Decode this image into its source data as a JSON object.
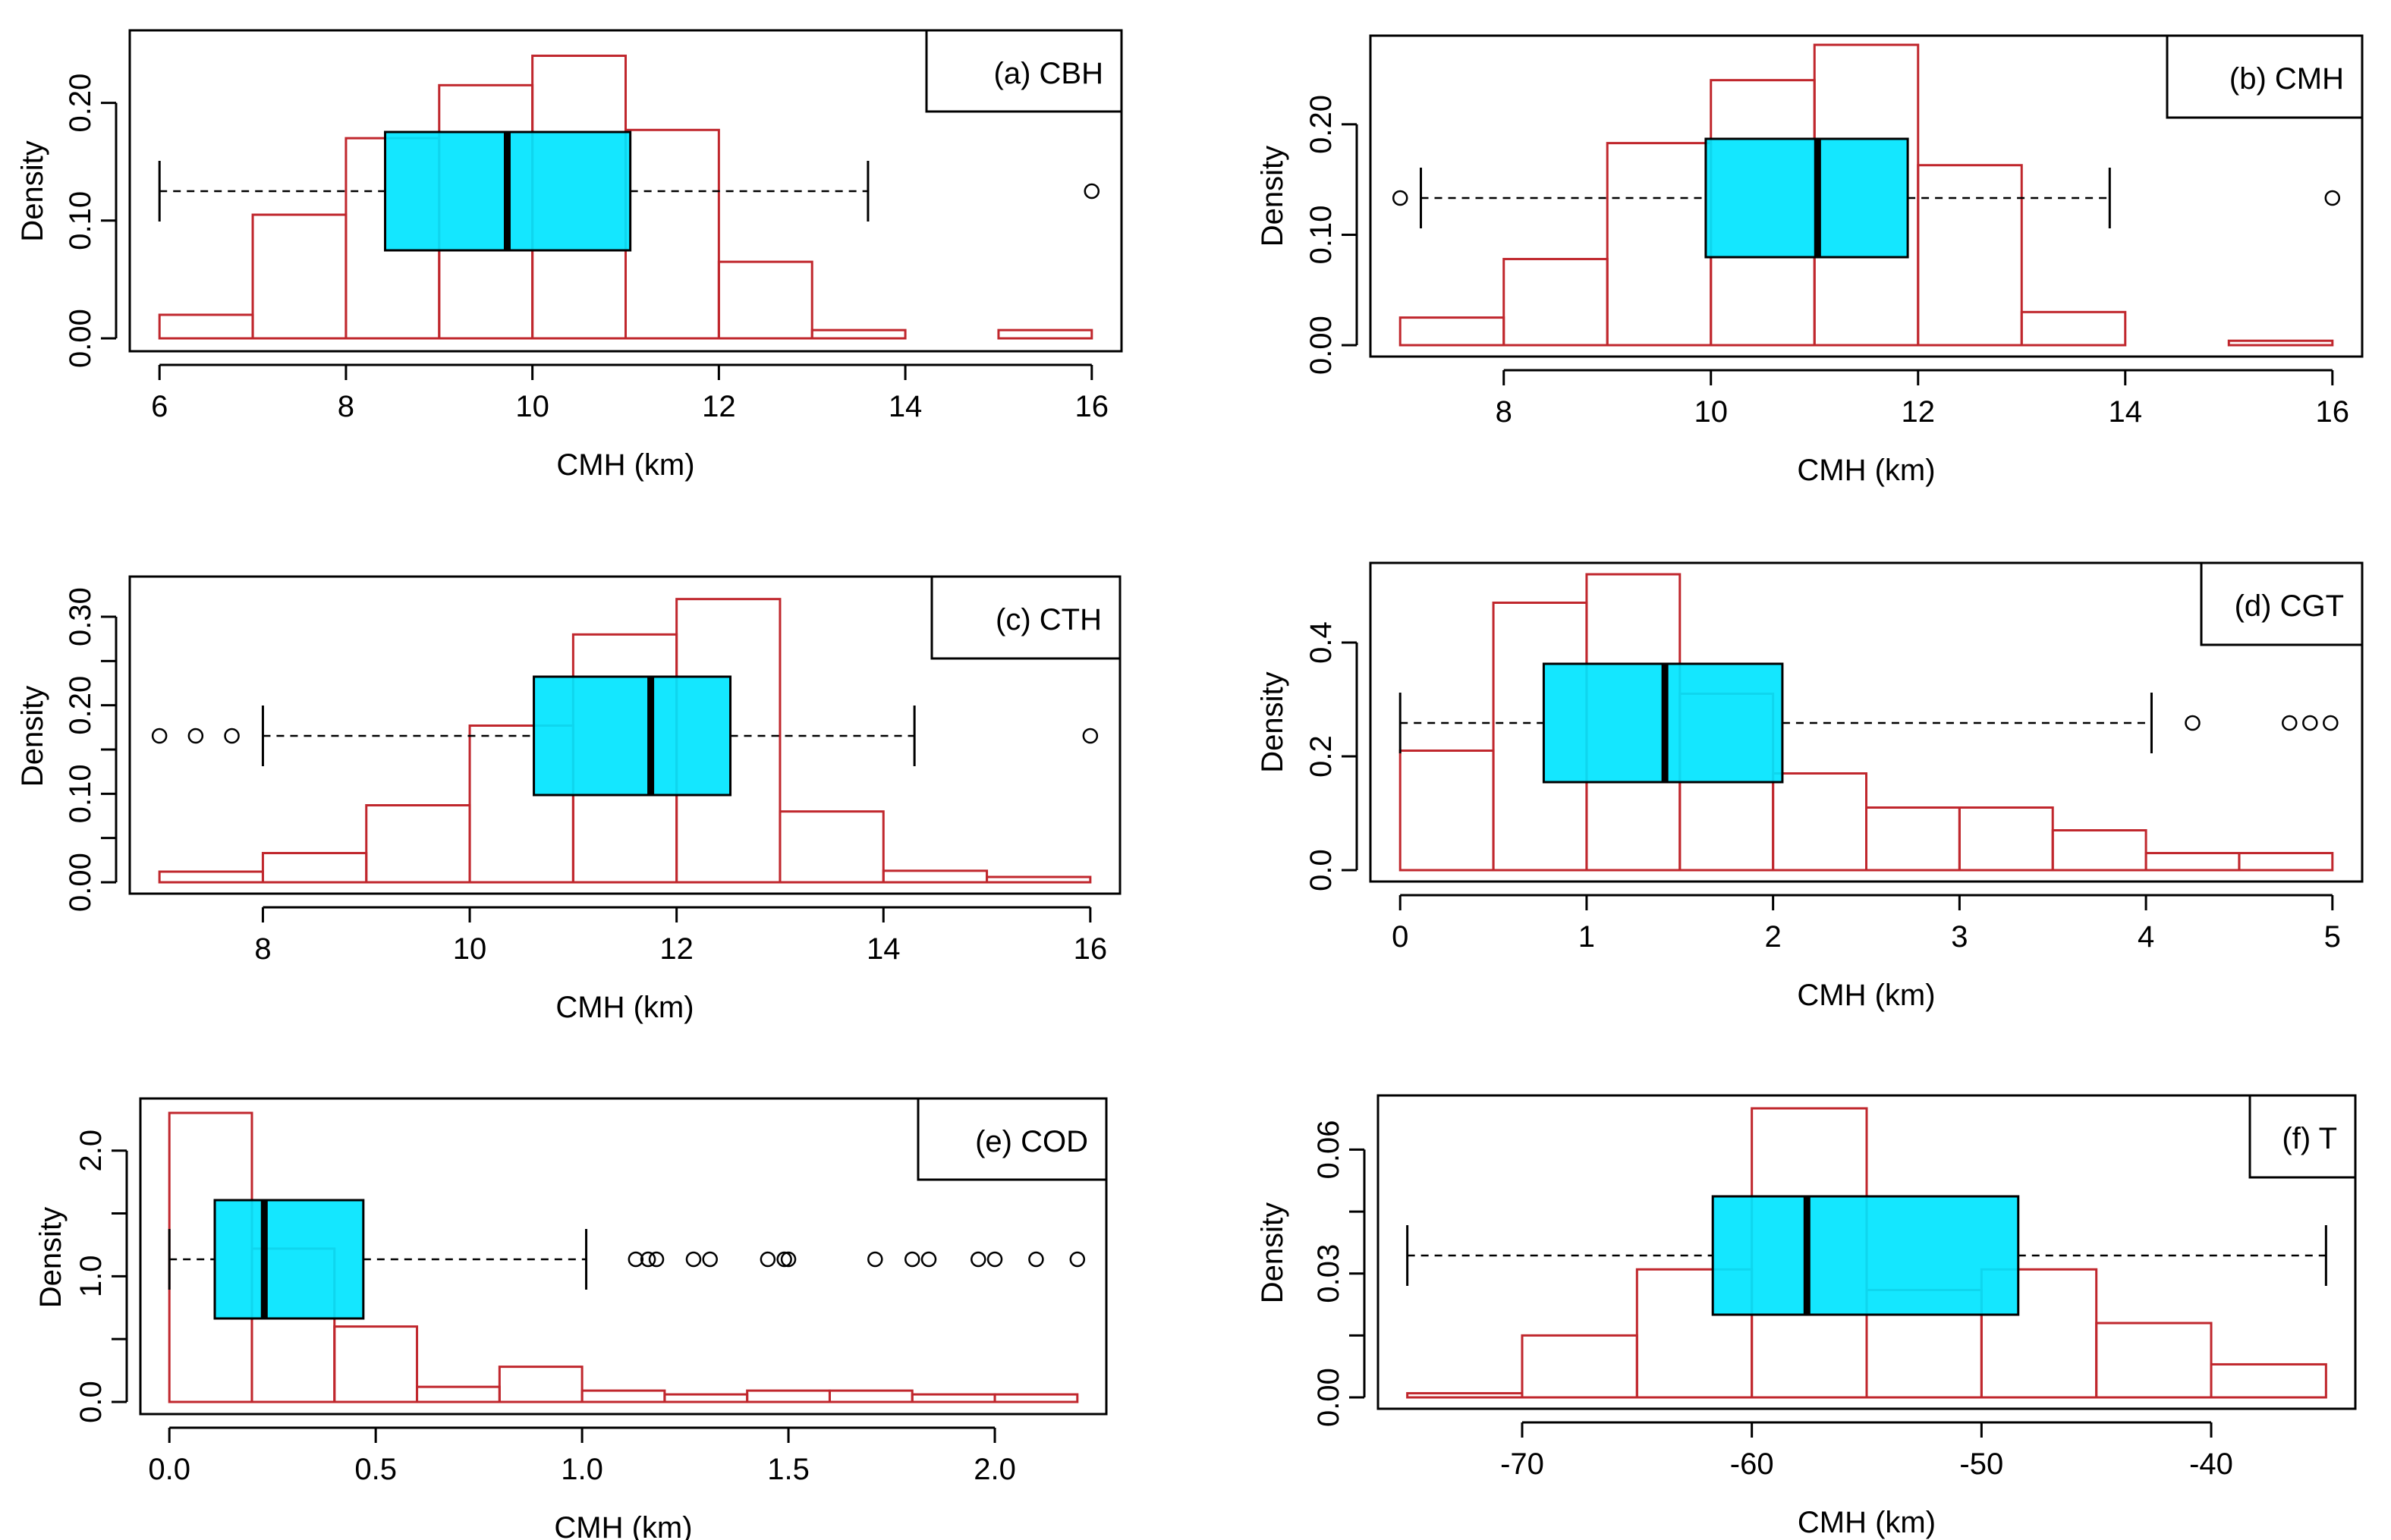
{
  "colors": {
    "histogram": "#C0272D",
    "box_fill": "#00E5FF",
    "ink": "#000000",
    "background": "#FFFFFF"
  },
  "chart_data": [
    {
      "type": "histogram+boxplot",
      "title": "(a) CBH",
      "xlabel": "CMH (km)",
      "ylabel": "Density",
      "xlim": [
        6,
        16
      ],
      "ylim": [
        0,
        0.25
      ],
      "xticks": [
        6,
        8,
        10,
        12,
        14,
        16
      ],
      "xtick_labels": [
        "6",
        "8",
        "10",
        "12",
        "14",
        "16"
      ],
      "yticks": [
        0,
        0.1,
        0.2
      ],
      "ytick_labels": [
        "0.00",
        "0.10",
        "0.20"
      ],
      "histogram": {
        "bins": [
          [
            6,
            7
          ],
          [
            7,
            8
          ],
          [
            8,
            9
          ],
          [
            9,
            10
          ],
          [
            10,
            11
          ],
          [
            11,
            12
          ],
          [
            12,
            13
          ],
          [
            13,
            14
          ],
          [
            14,
            15
          ],
          [
            15,
            16
          ]
        ],
        "density": [
          0.02,
          0.105,
          0.17,
          0.215,
          0.24,
          0.177,
          0.065,
          0.007,
          0.0,
          0.007
        ]
      },
      "boxplot": {
        "whisker_low": 6.0,
        "q1": 8.42,
        "median": 9.73,
        "q3": 11.05,
        "whisker_high": 13.6,
        "outliers": [
          16.0
        ]
      }
    },
    {
      "type": "histogram+boxplot",
      "title": "(b) CMH",
      "xlabel": "CMH (km)",
      "ylabel": "Density",
      "xlim": [
        7,
        16
      ],
      "ylim": [
        0,
        0.27
      ],
      "xticks": [
        8,
        10,
        12,
        14,
        16
      ],
      "xtick_labels": [
        "8",
        "10",
        "12",
        "14",
        "16"
      ],
      "yticks": [
        0,
        0.1,
        0.2
      ],
      "ytick_labels": [
        "0.00",
        "0.10",
        "0.20"
      ],
      "histogram": {
        "bins": [
          [
            7,
            8
          ],
          [
            8,
            9
          ],
          [
            9,
            10
          ],
          [
            10,
            11
          ],
          [
            11,
            12
          ],
          [
            12,
            13
          ],
          [
            13,
            14
          ],
          [
            14,
            15
          ],
          [
            15,
            16
          ]
        ],
        "density": [
          0.025,
          0.078,
          0.183,
          0.24,
          0.272,
          0.163,
          0.03,
          0.0,
          0.004
        ]
      },
      "boxplot": {
        "whisker_low": 7.2,
        "q1": 9.95,
        "median": 11.03,
        "q3": 11.9,
        "whisker_high": 13.85,
        "outliers": [
          7.0,
          16.0
        ]
      }
    },
    {
      "type": "histogram+boxplot",
      "title": "(c) CTH",
      "xlabel": "CMH (km)",
      "ylabel": "Density",
      "xlim": [
        7,
        16
      ],
      "ylim": [
        0,
        0.33
      ],
      "xticks": [
        8,
        10,
        12,
        14,
        16
      ],
      "xtick_labels": [
        "8",
        "10",
        "12",
        "14",
        "16"
      ],
      "yticks": [
        0,
        0.05,
        0.1,
        0.15,
        0.2,
        0.25,
        0.3
      ],
      "ytick_labels": [
        "0.00",
        "0.10",
        "0.20",
        "0.30"
      ],
      "histogram": {
        "bins": [
          [
            7,
            8
          ],
          [
            8,
            9
          ],
          [
            9,
            10
          ],
          [
            10,
            11
          ],
          [
            11,
            12
          ],
          [
            12,
            13
          ],
          [
            13,
            14
          ],
          [
            14,
            15
          ],
          [
            15,
            16
          ]
        ],
        "density": [
          0.012,
          0.033,
          0.087,
          0.177,
          0.28,
          0.32,
          0.08,
          0.013,
          0.006
        ]
      },
      "boxplot": {
        "whisker_low": 8.0,
        "q1": 10.62,
        "median": 11.75,
        "q3": 12.52,
        "whisker_high": 14.3,
        "outliers": [
          7.0,
          7.35,
          7.7,
          16.0
        ]
      }
    },
    {
      "type": "histogram+boxplot",
      "title": "(d) CGT",
      "xlabel": "CMH (km)",
      "ylabel": "Density",
      "xlim": [
        0,
        5
      ],
      "ylim": [
        0,
        0.52
      ],
      "xticks": [
        0,
        1,
        2,
        3,
        4,
        5
      ],
      "xtick_labels": [
        "0",
        "1",
        "2",
        "3",
        "4",
        "5"
      ],
      "yticks": [
        0,
        0.2,
        0.4
      ],
      "ytick_labels": [
        "0.0",
        "0.2",
        "0.4"
      ],
      "histogram": {
        "bins": [
          [
            0,
            0.5
          ],
          [
            0.5,
            1
          ],
          [
            1,
            1.5
          ],
          [
            1.5,
            2
          ],
          [
            2,
            2.5
          ],
          [
            2.5,
            3
          ],
          [
            3,
            3.5
          ],
          [
            3.5,
            4
          ],
          [
            4,
            4.5
          ],
          [
            4.5,
            5
          ]
        ],
        "density": [
          0.21,
          0.47,
          0.52,
          0.31,
          0.17,
          0.11,
          0.11,
          0.07,
          0.03,
          0.03
        ]
      },
      "boxplot": {
        "whisker_low": 0.0,
        "q1": 0.77,
        "median": 1.42,
        "q3": 2.05,
        "whisker_high": 4.03,
        "outliers": [
          4.25,
          4.77,
          4.88,
          4.99
        ]
      }
    },
    {
      "type": "histogram+boxplot",
      "title": "(e) COD",
      "xlabel": "CMH (km)",
      "ylabel": "Density",
      "xlim": [
        0,
        2.2
      ],
      "ylim": [
        0,
        2.3
      ],
      "xticks": [
        0,
        0.5,
        1,
        1.5,
        2
      ],
      "xtick_labels": [
        "0.0",
        "0.5",
        "1.0",
        "1.5",
        "2.0"
      ],
      "yticks": [
        0,
        0.5,
        1,
        1.5,
        2
      ],
      "ytick_labels": [
        "0.0",
        "1.0",
        "2.0"
      ],
      "histogram": {
        "bins": [
          [
            0,
            0.2
          ],
          [
            0.2,
            0.4
          ],
          [
            0.4,
            0.6
          ],
          [
            0.6,
            0.8
          ],
          [
            0.8,
            1.0
          ],
          [
            1.0,
            1.2
          ],
          [
            1.2,
            1.4
          ],
          [
            1.4,
            1.6
          ],
          [
            1.6,
            1.8
          ],
          [
            1.8,
            2.0
          ],
          [
            2.0,
            2.2
          ]
        ],
        "density": [
          2.3,
          1.22,
          0.6,
          0.12,
          0.28,
          0.09,
          0.06,
          0.09,
          0.09,
          0.06,
          0.06
        ]
      },
      "boxplot": {
        "whisker_low": 0.0,
        "q1": 0.11,
        "median": 0.23,
        "q3": 0.47,
        "whisker_high": 1.01,
        "outliers": [
          1.13,
          1.16,
          1.18,
          1.27,
          1.31,
          1.45,
          1.49,
          1.5,
          1.71,
          1.8,
          1.84,
          1.96,
          2.0,
          2.1,
          2.2
        ]
      }
    },
    {
      "type": "histogram+boxplot",
      "title": "(f) T",
      "xlabel": "CMH (km)",
      "ylabel": "Density",
      "xlim": [
        -75,
        -35
      ],
      "ylim": [
        0,
        0.07
      ],
      "xticks": [
        -70,
        -60,
        -50,
        -40
      ],
      "xtick_labels": [
        "-70",
        "-60",
        "-50",
        "-40"
      ],
      "yticks": [
        0,
        0.015,
        0.03,
        0.045,
        0.06
      ],
      "ytick_labels": [
        "0.00",
        "0.03",
        "0.06"
      ],
      "histogram": {
        "bins": [
          [
            -75,
            -70
          ],
          [
            -70,
            -65
          ],
          [
            -65,
            -60
          ],
          [
            -60,
            -55
          ],
          [
            -55,
            -50
          ],
          [
            -50,
            -45
          ],
          [
            -45,
            -40
          ],
          [
            -40,
            -35
          ]
        ],
        "density": [
          0.001,
          0.015,
          0.031,
          0.07,
          0.026,
          0.031,
          0.018,
          0.008
        ]
      },
      "boxplot": {
        "whisker_low": -75.0,
        "q1": -61.7,
        "median": -57.6,
        "q3": -48.4,
        "whisker_high": -35.0,
        "outliers": []
      }
    }
  ]
}
